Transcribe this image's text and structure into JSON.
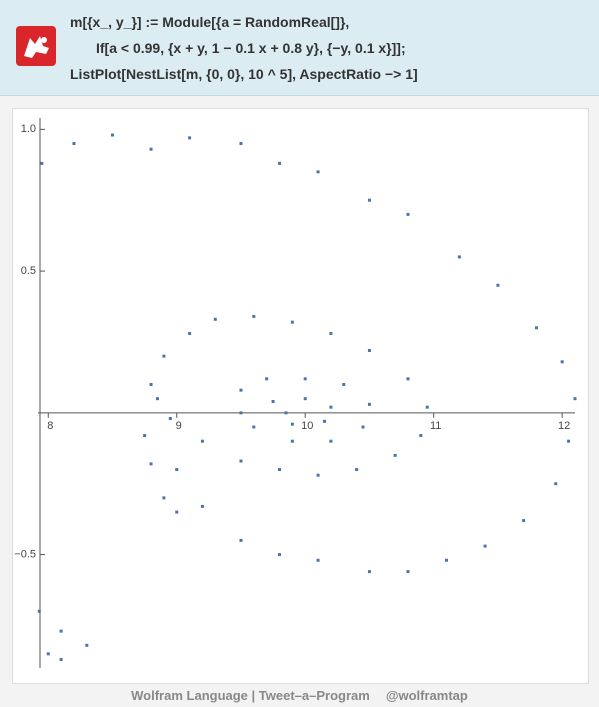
{
  "header": {
    "code": [
      "m[{x_, y_}] := Module[{a = RandomReal[]},",
      "If[a < 0.99, {x + y, 1 − 0.1 x + 0.8 y}, {−y, 0.1 x}]];",
      "ListPlot[NestList[m, {0, 0}, 10 ^ 5], AspectRatio −> 1]"
    ]
  },
  "chart_data": {
    "type": "scatter",
    "x": [
      9.5,
      9.7,
      10,
      10.3,
      10.5,
      10.45,
      10.2,
      9.9,
      9.6,
      9.5,
      9.75,
      10,
      10.2,
      10.15,
      9.9,
      9.85,
      8.8,
      8.9,
      9.1,
      9.3,
      9.6,
      9.9,
      10.2,
      10.5,
      10.8,
      10.95,
      10.9,
      10.7,
      10.4,
      10.1,
      9.8,
      9.5,
      9.2,
      8.95,
      8.85,
      8.75,
      8.8,
      8.9,
      9.0,
      7.95,
      8.2,
      8.5,
      8.8,
      9.1,
      9.5,
      9.8,
      10.1,
      10.5,
      10.8,
      11.2,
      11.5,
      11.8,
      12.0,
      12.1,
      12.05,
      11.95,
      11.7,
      11.4,
      11.1,
      10.8,
      10.5,
      10.1,
      9.8,
      9.5,
      9.2,
      9.0,
      7.93,
      8.1,
      8.3,
      8.0,
      8.1
    ],
    "series": [
      {
        "color": "#4e73aa",
        "values": [
          0.08,
          0.12,
          0.12,
          0.1,
          0.03,
          -0.05,
          -0.1,
          -0.1,
          -0.05,
          0,
          0.04,
          0.05,
          0.02,
          -0.03,
          -0.04,
          0,
          0.1,
          0.2,
          0.28,
          0.33,
          0.34,
          0.32,
          0.28,
          0.22,
          0.12,
          0.02,
          -0.08,
          -0.15,
          -0.2,
          -0.22,
          -0.2,
          -0.17,
          -0.1,
          -0.02,
          0.05,
          -0.08,
          -0.18,
          -0.3,
          -0.35,
          0.88,
          0.95,
          0.98,
          0.93,
          0.97,
          0.95,
          0.88,
          0.85,
          0.75,
          0.7,
          0.55,
          0.45,
          0.3,
          0.18,
          0.05,
          -0.1,
          -0.25,
          -0.38,
          -0.47,
          -0.52,
          -0.56,
          -0.56,
          -0.52,
          -0.5,
          -0.45,
          -0.33,
          -0.2,
          -0.7,
          -0.77,
          -0.82,
          -0.85,
          -0.87
        ]
      }
    ],
    "xlim": [
      7.92,
      12.1
    ],
    "ylim": [
      -0.9,
      1.04
    ],
    "xticks": [
      8,
      9,
      10,
      11,
      12
    ],
    "yticks": [
      {
        "value": 1,
        "label": "1.0"
      },
      {
        "value": 0.5,
        "label": "0.5"
      },
      {
        "value": -0.5,
        "label": "−0.5"
      }
    ]
  },
  "footer": [
    "Wolfram Language | Tweet–a–Program",
    "@wolframtap"
  ]
}
